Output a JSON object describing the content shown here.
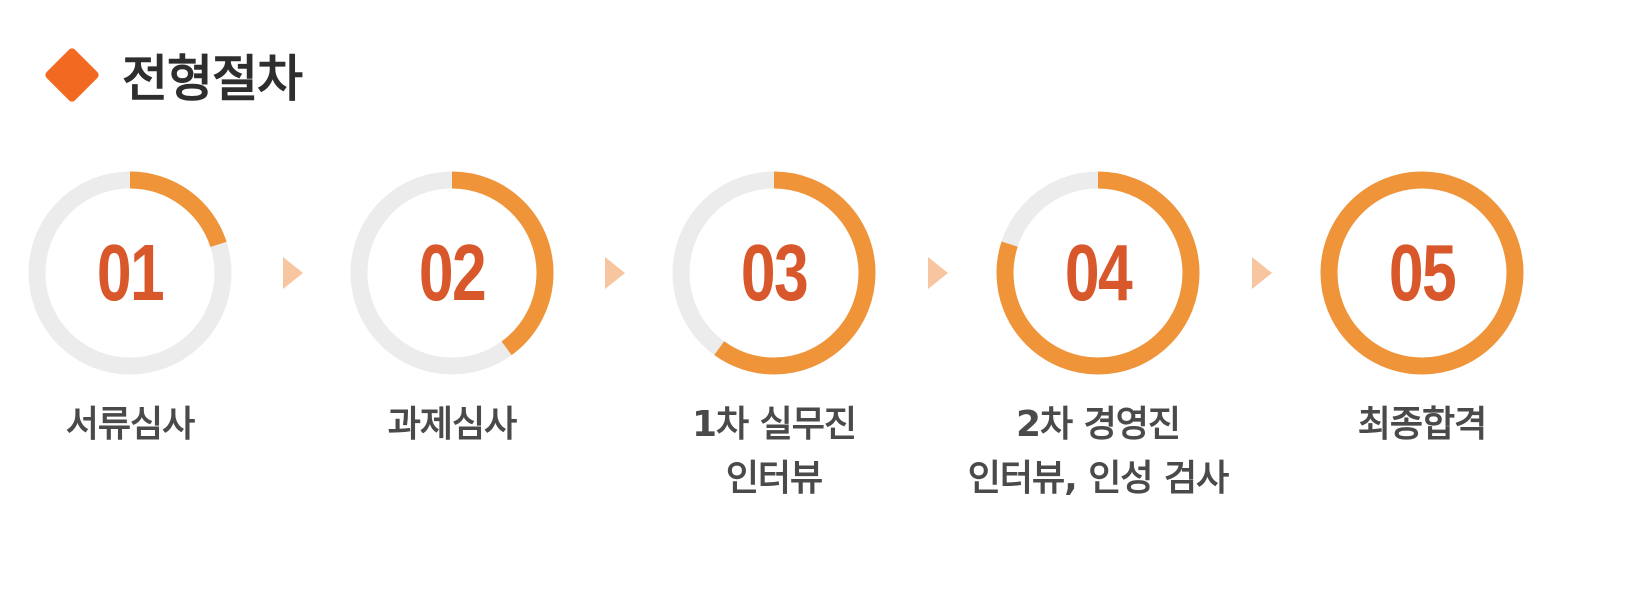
{
  "header": {
    "title": "전형절차",
    "icon": "diamond-icon",
    "icon_color": "#f26a21"
  },
  "colors": {
    "progress": "#ef9439",
    "track": "#ececec",
    "number": "#d9582b",
    "label": "#4a4a4a",
    "arrow": "#f7c59f"
  },
  "steps": [
    {
      "number": "01",
      "label_line1": "서류심사",
      "label_line2": "",
      "progress": 0.2
    },
    {
      "number": "02",
      "label_line1": "과제심사",
      "label_line2": "",
      "progress": 0.4
    },
    {
      "number": "03",
      "label_line1": "1차 실무진",
      "label_line2": "인터뷰",
      "progress": 0.6
    },
    {
      "number": "04",
      "label_line1": "2차 경영진",
      "label_line2": "인터뷰, 인성 검사",
      "progress": 0.8
    },
    {
      "number": "05",
      "label_line1": "최종합격",
      "label_line2": "",
      "progress": 1.0
    }
  ],
  "arrow_icon": "triangle-right-icon"
}
